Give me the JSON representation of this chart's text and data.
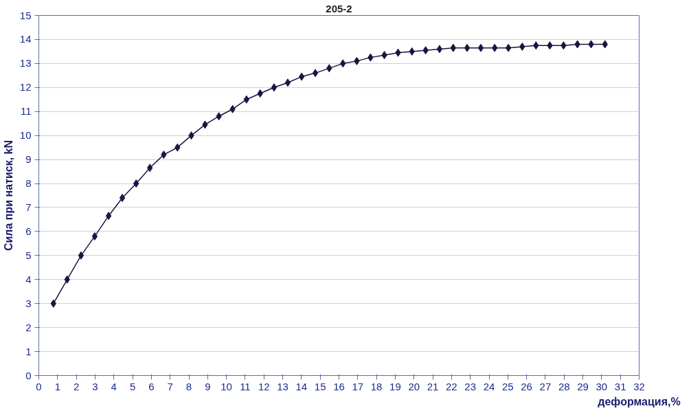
{
  "chart_data": {
    "type": "line",
    "title": "205-2",
    "xlabel": "деформация,%",
    "ylabel": "Сила при натиск, kN",
    "x": [
      0.78,
      1.51,
      2.25,
      2.98,
      3.72,
      4.45,
      5.19,
      5.92,
      6.66,
      7.39,
      8.13,
      8.86,
      9.6,
      10.33,
      11.07,
      11.8,
      12.54,
      13.27,
      14.01,
      14.74,
      15.48,
      16.21,
      16.95,
      17.68,
      18.42,
      19.15,
      19.89,
      20.62,
      21.36,
      22.09,
      22.83,
      23.56,
      24.3,
      25.03,
      25.77,
      26.5,
      27.24,
      27.97,
      28.71,
      29.44,
      30.18
    ],
    "series": [
      {
        "color": "#1c1440",
        "values": [
          3.0,
          4.0,
          5.0,
          5.8,
          6.65,
          7.4,
          8.0,
          8.65,
          9.2,
          9.5,
          10.0,
          10.45,
          10.8,
          11.1,
          11.5,
          11.75,
          12.0,
          12.2,
          12.45,
          12.6,
          12.8,
          13.0,
          13.1,
          13.25,
          13.35,
          13.45,
          13.5,
          13.55,
          13.6,
          13.65,
          13.65,
          13.65,
          13.65,
          13.65,
          13.7,
          13.75,
          13.75,
          13.75,
          13.8,
          13.8,
          13.8
        ]
      }
    ],
    "xlim": [
      0,
      32
    ],
    "xticks": [
      0,
      1,
      2,
      3,
      4,
      5,
      6,
      7,
      8,
      9,
      10,
      11,
      12,
      13,
      14,
      15,
      16,
      17,
      18,
      19,
      20,
      21,
      22,
      23,
      24,
      25,
      26,
      27,
      28,
      29,
      30,
      31,
      32
    ],
    "ylim": [
      0,
      15
    ],
    "yticks": [
      0,
      1,
      2,
      3,
      4,
      5,
      6,
      7,
      8,
      9,
      10,
      11,
      12,
      13,
      14,
      15
    ],
    "grid": "y",
    "marker": "diamond",
    "line_style": "solid"
  }
}
